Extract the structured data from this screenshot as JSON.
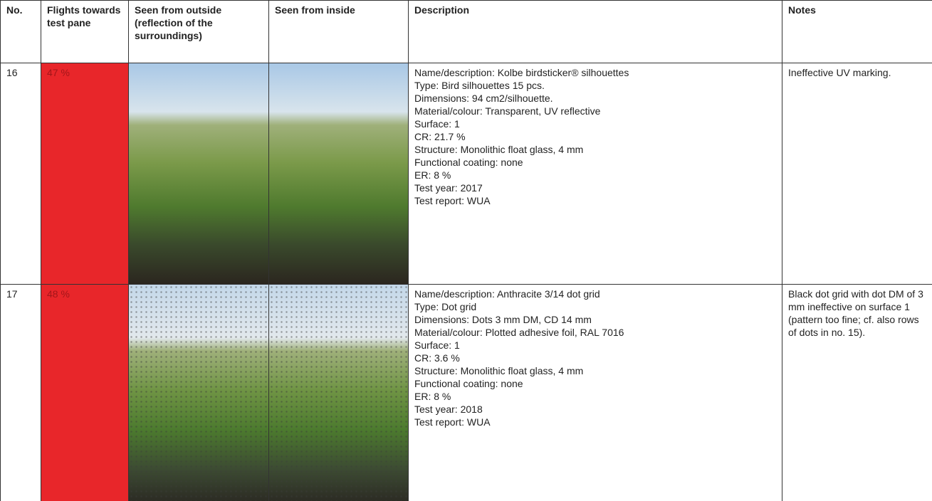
{
  "table": {
    "headers": [
      "No.",
      "Flights towards test pane",
      "Seen from outside (reflection of the surroundings)",
      "Seen from inside",
      "Description",
      "Notes"
    ],
    "rows": [
      {
        "no": "16",
        "flights": "47 %",
        "description": [
          "Name/description: Kolbe birdsticker® silhouettes",
          "Type: Bird silhouettes 15 pcs.",
          "Dimensions: 94 cm2/silhouette.",
          "Material/colour: Transparent, UV reflective",
          "Surface: 1",
          "CR: 21.7 %",
          "Structure: Monolithic float glass, 4 mm",
          "Functional coating: none",
          "ER: 8 %",
          "Test year: 2017",
          "Test report: WUA"
        ],
        "notes": "Ineffective UV marking."
      },
      {
        "no": "17",
        "flights": "48 %",
        "description": [
          "Name/description: Anthracite 3/14 dot grid",
          "Type: Dot grid",
          "Dimensions: Dots 3 mm DM, CD 14 mm",
          "Material/colour: Plotted adhesive foil, RAL 7016",
          "Surface: 1",
          "CR: 3.6 %",
          "Structure: Monolithic float glass, 4 mm",
          "Functional coating: none",
          "ER: 8 %",
          "Test year: 2018",
          "Test report: WUA"
        ],
        "notes": "Black dot grid with dot DM of 3 mm ineffective on surface 1 (pattern too fine; cf. also rows of dots in no. 15)."
      }
    ]
  }
}
